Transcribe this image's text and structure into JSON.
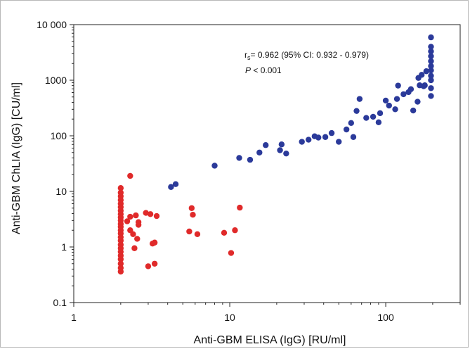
{
  "chart_data": {
    "type": "scatter",
    "title": "",
    "xlabel": "Anti-GBM ELISA (IgG) [RU/ml]",
    "ylabel": "Anti-GBM ChLIA (IgG) [CU/ml]",
    "x_scale": "log",
    "y_scale": "log",
    "xlim": [
      1,
      300
    ],
    "ylim": [
      0.1,
      10000
    ],
    "x_ticks": [
      1,
      10,
      100
    ],
    "x_tick_labels": [
      "1",
      "10",
      "100"
    ],
    "y_ticks": [
      0.1,
      1,
      10,
      100,
      1000,
      10000
    ],
    "y_tick_labels": [
      "0.1",
      "1",
      "10",
      "100",
      "1000",
      "10 000"
    ],
    "grid": false,
    "annotation": {
      "rs_symbol": "r",
      "rs_subscript": "s",
      "rs_text": "= 0.962 (95% CI: 0.932 - 0.979)",
      "p_symbol": "P",
      "p_text": " < 0.001"
    },
    "series": [
      {
        "color": "#2b3a9a",
        "points": [
          [
            4.2,
            12
          ],
          [
            4.5,
            13.5
          ],
          [
            8,
            29
          ],
          [
            11.5,
            40
          ],
          [
            13.5,
            37
          ],
          [
            15.5,
            50
          ],
          [
            17,
            68
          ],
          [
            21,
            55
          ],
          [
            21.5,
            70
          ],
          [
            23,
            48
          ],
          [
            29,
            78
          ],
          [
            32,
            85
          ],
          [
            35,
            98
          ],
          [
            37,
            93
          ],
          [
            41,
            95
          ],
          [
            45,
            112
          ],
          [
            50,
            78
          ],
          [
            56,
            130
          ],
          [
            60,
            170
          ],
          [
            62,
            95
          ],
          [
            65,
            280
          ],
          [
            68,
            460
          ],
          [
            75,
            210
          ],
          [
            83,
            220
          ],
          [
            90,
            175
          ],
          [
            92,
            255
          ],
          [
            100,
            430
          ],
          [
            105,
            350
          ],
          [
            115,
            300
          ],
          [
            118,
            460
          ],
          [
            120,
            800
          ],
          [
            130,
            560
          ],
          [
            140,
            610
          ],
          [
            145,
            690
          ],
          [
            150,
            285
          ],
          [
            160,
            410
          ],
          [
            162,
            1100
          ],
          [
            165,
            810
          ],
          [
            170,
            1250
          ],
          [
            175,
            780
          ],
          [
            178,
            810
          ],
          [
            182,
            1450
          ],
          [
            195,
            520
          ],
          [
            195,
            720
          ],
          [
            195,
            1000
          ],
          [
            195,
            1200
          ],
          [
            195,
            1500
          ],
          [
            195,
            1800
          ],
          [
            195,
            2200
          ],
          [
            195,
            2700
          ],
          [
            195,
            3300
          ],
          [
            195,
            4000
          ],
          [
            195,
            5900
          ]
        ]
      },
      {
        "color": "#e02a2a",
        "points": [
          [
            2,
            0.36
          ],
          [
            2,
            0.42
          ],
          [
            2,
            0.5
          ],
          [
            2,
            0.6
          ],
          [
            2,
            0.7
          ],
          [
            2,
            0.82
          ],
          [
            2,
            0.95
          ],
          [
            2,
            1.1
          ],
          [
            2,
            1.3
          ],
          [
            2,
            1.5
          ],
          [
            2,
            1.75
          ],
          [
            2,
            2.0
          ],
          [
            2,
            2.3
          ],
          [
            2,
            2.6
          ],
          [
            2,
            3.0
          ],
          [
            2,
            3.4
          ],
          [
            2,
            3.9
          ],
          [
            2,
            4.5
          ],
          [
            2,
            5.2
          ],
          [
            2,
            6.0
          ],
          [
            2,
            7.0
          ],
          [
            2,
            8.2
          ],
          [
            2,
            9.5
          ],
          [
            2,
            11.5
          ],
          [
            2.2,
            2.9
          ],
          [
            2.3,
            19
          ],
          [
            2.3,
            3.5
          ],
          [
            2.3,
            2.0
          ],
          [
            2.4,
            1.7
          ],
          [
            2.45,
            0.95
          ],
          [
            2.5,
            3.7
          ],
          [
            2.55,
            1.4
          ],
          [
            2.6,
            2.8
          ],
          [
            2.6,
            2.5
          ],
          [
            2.9,
            4.1
          ],
          [
            3.0,
            0.45
          ],
          [
            3.1,
            3.9
          ],
          [
            3.2,
            1.15
          ],
          [
            3.3,
            1.2
          ],
          [
            3.3,
            0.5
          ],
          [
            3.4,
            3.6
          ],
          [
            5.5,
            1.9
          ],
          [
            5.7,
            5.0
          ],
          [
            5.8,
            3.8
          ],
          [
            6.2,
            1.7
          ],
          [
            9.2,
            1.8
          ],
          [
            10.2,
            0.78
          ],
          [
            10.8,
            2.0
          ],
          [
            11.6,
            5.1
          ]
        ]
      }
    ]
  }
}
